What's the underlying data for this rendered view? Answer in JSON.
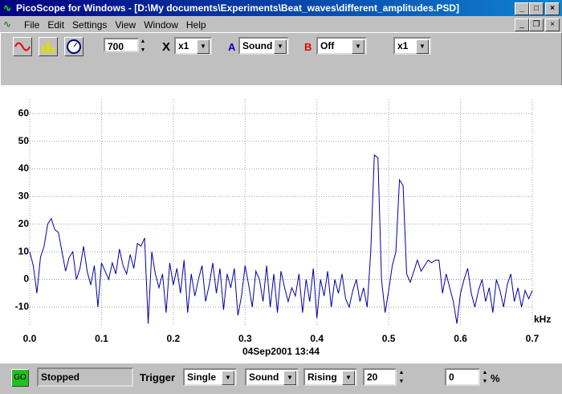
{
  "window": {
    "title": "PicoScope for Windows - [D:\\My documents\\Experiments\\Beat_waves\\different_amplitudes.PSD]"
  },
  "menu": [
    "File",
    "Edit",
    "Settings",
    "View",
    "Window",
    "Help"
  ],
  "toolbar": {
    "samples": "700",
    "x_label": "X",
    "x_scale": "x1",
    "channel_a_label": "A",
    "channel_a": "Sound",
    "channel_b_label": "B",
    "channel_b": "Off",
    "y_scale": "x1"
  },
  "chart_data": {
    "type": "line",
    "x_label": "kHz",
    "timestamp": "04Sep2001  13:44",
    "color": "#0000a0",
    "grid": true,
    "xlim": [
      0,
      0.7
    ],
    "xticks": [
      {
        "value": 0,
        "label": "0.0"
      },
      0.1,
      0.2,
      0.3,
      0.4,
      0.5,
      0.6,
      0.7
    ],
    "ylim": [
      -17,
      65
    ],
    "yticks": [
      -10,
      0,
      10,
      20,
      30,
      40,
      50,
      60
    ],
    "x": [
      0,
      0.005,
      0.01,
      0.015,
      0.02,
      0.025,
      0.03,
      0.035,
      0.04,
      0.045,
      0.05,
      0.055,
      0.06,
      0.065,
      0.07,
      0.075,
      0.08,
      0.085,
      0.09,
      0.095,
      0.1,
      0.105,
      0.11,
      0.115,
      0.12,
      0.125,
      0.13,
      0.135,
      0.14,
      0.145,
      0.15,
      0.155,
      0.16,
      0.165,
      0.17,
      0.175,
      0.18,
      0.185,
      0.19,
      0.195,
      0.2,
      0.205,
      0.21,
      0.215,
      0.22,
      0.225,
      0.23,
      0.235,
      0.24,
      0.245,
      0.25,
      0.255,
      0.26,
      0.265,
      0.27,
      0.275,
      0.28,
      0.285,
      0.29,
      0.295,
      0.3,
      0.305,
      0.31,
      0.315,
      0.32,
      0.325,
      0.33,
      0.335,
      0.34,
      0.345,
      0.35,
      0.355,
      0.36,
      0.365,
      0.37,
      0.375,
      0.38,
      0.385,
      0.39,
      0.395,
      0.4,
      0.405,
      0.41,
      0.415,
      0.42,
      0.425,
      0.43,
      0.435,
      0.44,
      0.445,
      0.45,
      0.455,
      0.46,
      0.465,
      0.47,
      0.475,
      0.48,
      0.485,
      0.49,
      0.495,
      0.5,
      0.505,
      0.51,
      0.515,
      0.52,
      0.525,
      0.53,
      0.535,
      0.54,
      0.545,
      0.55,
      0.555,
      0.56,
      0.565,
      0.57,
      0.575,
      0.58,
      0.585,
      0.59,
      0.595,
      0.6,
      0.605,
      0.61,
      0.615,
      0.62,
      0.625,
      0.63,
      0.635,
      0.64,
      0.645,
      0.65,
      0.655,
      0.66,
      0.665,
      0.67,
      0.675,
      0.68,
      0.685,
      0.69,
      0.695,
      0.7
    ],
    "values": [
      10,
      5,
      -5,
      8,
      12,
      20,
      22,
      18,
      17,
      10,
      3,
      8,
      10,
      0,
      4,
      12,
      3,
      -2,
      5,
      -10,
      6,
      3,
      0,
      6,
      2,
      11,
      5,
      2,
      9,
      4,
      13,
      12,
      15,
      -16,
      10,
      2,
      -3,
      2,
      -12,
      6,
      -2,
      4,
      -5,
      7,
      -12,
      2,
      -6,
      0,
      5,
      -8,
      -2,
      6,
      -5,
      4,
      -11,
      2,
      -3,
      4,
      -13,
      -6,
      5,
      -2,
      -10,
      3,
      0,
      -8,
      5,
      -10,
      2,
      -12,
      3,
      -3,
      -8,
      -3,
      -6,
      2,
      -12,
      0,
      -8,
      4,
      -14,
      0,
      -6,
      3,
      -10,
      0,
      -5,
      2,
      -7,
      -10,
      -4,
      0,
      -8,
      -3,
      -10,
      10,
      45,
      44,
      0,
      -12,
      -4,
      5,
      10,
      36,
      34,
      2,
      -1,
      3,
      7,
      3,
      5,
      7,
      6,
      7,
      7,
      -5,
      2,
      -3,
      -8,
      -16,
      -5,
      0,
      4,
      -5,
      -10,
      -4,
      0,
      -8,
      -3,
      -12,
      0,
      -4,
      -10,
      -2,
      2,
      -8,
      -3,
      -10,
      -4,
      -7,
      -4
    ]
  },
  "status": {
    "go": "GO",
    "state": "Stopped",
    "trigger_label": "Trigger",
    "trigger_mode": "Single",
    "trigger_source": "Sound",
    "trigger_edge": "Rising",
    "trigger_level": "20",
    "delay": "0",
    "delay_unit": "%"
  }
}
